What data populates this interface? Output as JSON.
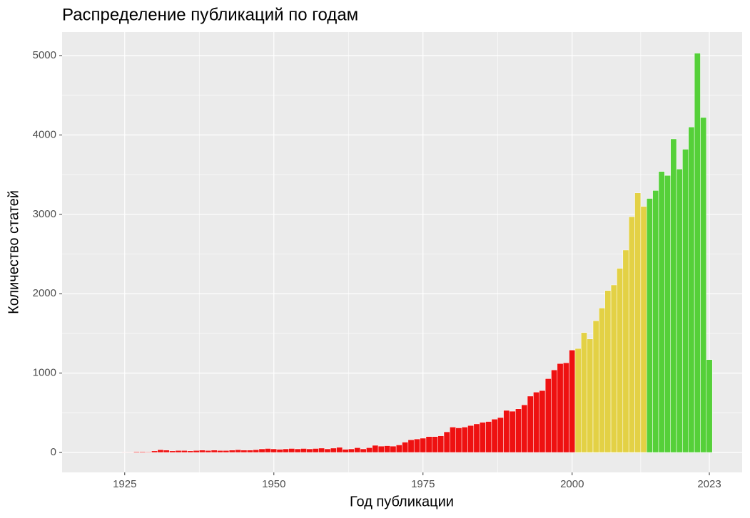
{
  "chart_data": {
    "type": "bar",
    "title": "Распределение публикаций по годам",
    "x_label": "Год публикации",
    "y_label": "Количество статей",
    "xlim": [
      1914.5,
      2028.5
    ],
    "ylim": [
      -251,
      5296
    ],
    "xticks": [
      1925,
      1950,
      1975,
      2000,
      2023
    ],
    "yticks": [
      0,
      1000,
      2000,
      3000,
      4000,
      5000
    ],
    "grid": true,
    "series": [
      {
        "color": "#ee1111",
        "x": [
          1925,
          1926,
          1927,
          1928,
          1929,
          1930,
          1931,
          1932,
          1933,
          1934,
          1935,
          1936,
          1937,
          1938,
          1939,
          1940,
          1941,
          1942,
          1943,
          1944,
          1945,
          1946,
          1947,
          1948,
          1949,
          1950,
          1951,
          1952,
          1953,
          1954,
          1955,
          1956,
          1957,
          1958,
          1959,
          1960,
          1961,
          1962,
          1963,
          1964,
          1965,
          1966,
          1967,
          1968,
          1969,
          1970,
          1971,
          1972,
          1973,
          1974,
          1975,
          1976,
          1977,
          1978,
          1979,
          1980,
          1981,
          1982,
          1983,
          1984,
          1985,
          1986,
          1987,
          1988,
          1989,
          1990,
          1991,
          1992,
          1993,
          1994,
          1995,
          1996,
          1997,
          1998,
          1999,
          2000
        ],
        "values": [
          5,
          5,
          10,
          10,
          8,
          20,
          35,
          30,
          20,
          25,
          25,
          20,
          25,
          30,
          25,
          30,
          25,
          25,
          30,
          35,
          30,
          30,
          35,
          45,
          50,
          45,
          40,
          45,
          50,
          45,
          50,
          45,
          50,
          55,
          45,
          55,
          65,
          40,
          45,
          60,
          45,
          60,
          90,
          80,
          85,
          80,
          95,
          130,
          160,
          170,
          180,
          200,
          200,
          210,
          260,
          320,
          310,
          320,
          340,
          360,
          380,
          390,
          420,
          440,
          530,
          520,
          550,
          600,
          710,
          760,
          780,
          930,
          1040,
          1120,
          1130,
          1290
        ]
      },
      {
        "color": "#e3d145",
        "x": [
          2001,
          2002,
          2003,
          2004,
          2005,
          2006,
          2007,
          2008,
          2009,
          2010,
          2011,
          2012
        ],
        "values": [
          1310,
          1510,
          1430,
          1660,
          1820,
          2040,
          2110,
          2320,
          2550,
          2970,
          3270,
          3100
        ]
      },
      {
        "color": "#55d039",
        "x": [
          2013,
          2014,
          2015,
          2016,
          2017,
          2018,
          2019,
          2020,
          2021,
          2022,
          2023
        ],
        "values": [
          3200,
          3300,
          3540,
          3490,
          3950,
          3570,
          3820,
          4100,
          5030,
          4220,
          1170
        ]
      }
    ]
  }
}
